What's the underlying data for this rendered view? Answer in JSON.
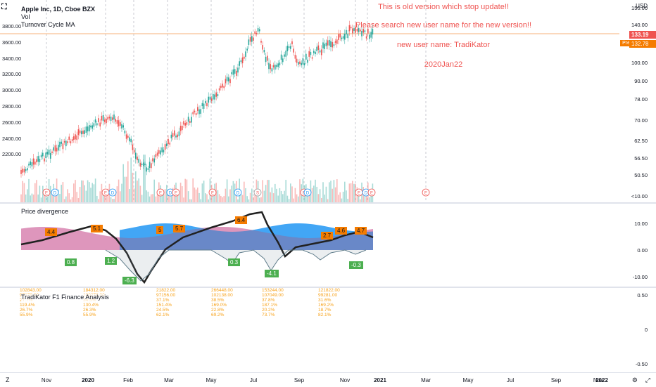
{
  "header": {
    "symbol_line": "Apple Inc, 1D, Cboe BZX",
    "indicator_vol": "Vol",
    "indicator_ma": "Turnover Cycle MA"
  },
  "notice": {
    "line1": "This is old version which stop update!!",
    "line2": "Please search new user name for the new version!!",
    "line3": "new user name: TradiKator",
    "line4": "2020Jan22"
  },
  "right_scale": {
    "currency": "USD",
    "ticks": [
      "150.00",
      "140.00",
      "120.00",
      "100.00",
      "90.00",
      "78.00",
      "70.00",
      "62.50",
      "56.50",
      "50.50",
      "<10.00"
    ],
    "price_badge": "133.19",
    "pre_label": "Pre",
    "pre_badge": "132.78"
  },
  "left_scale": {
    "ticks": [
      "3800.00",
      "3600.00",
      "3400.00",
      "3200.00",
      "3000.00",
      "2800.00",
      "2600.00",
      "2400.00",
      "2200.00"
    ]
  },
  "divergence": {
    "title": "Price divergence",
    "ticks": [
      "10.00",
      "0.00",
      "-10.00"
    ],
    "labels_up": [
      "4.4",
      "5.1",
      "5",
      "5.7",
      "6.4",
      "2.7",
      "4.6",
      "4.7"
    ],
    "labels_down": [
      "0.8",
      "1.2",
      "-6.3",
      "0.3",
      "-4.1",
      "-0.3"
    ]
  },
  "finance": {
    "title": "TradiKator F1 Finance Analysis",
    "ticks": [
      "0.50",
      "0",
      "-0.50"
    ],
    "columns": [
      [
        "102843.00",
        "97178.00",
        "27.7%",
        "119.4%",
        "26.7%",
        "55.9%"
      ],
      [
        "184312.00",
        "100278.00",
        "34.3%",
        "130.4%",
        "26.3%",
        "55.9%"
      ],
      [
        "21822.00",
        "97156.00",
        "37.1%",
        "151.4%",
        "24.5%",
        "62.1%"
      ],
      [
        "266448.00",
        "102138.00",
        "38.5%",
        "169.0%",
        "22.8%",
        "69.2%"
      ],
      [
        "153244.00",
        "107049.00",
        "37.8%",
        "187.1%",
        "20.2%",
        "73.7%"
      ],
      [
        "121822.00",
        "99281.00",
        "31.6%",
        "169.2%",
        "18.7%",
        "82.1%"
      ]
    ]
  },
  "xaxis": {
    "ticks": [
      "Nov",
      "2020",
      "Feb",
      "Mar",
      "May",
      "Jul",
      "Sep",
      "Nov",
      "2021",
      "Mar",
      "May",
      "Jul",
      "Sep",
      "Nov",
      "2022"
    ]
  },
  "colors": {
    "up": "#26a69a",
    "down": "#ef5350",
    "accent": "#f57c00",
    "blue": "#2196f3",
    "green_badge": "#4caf50"
  }
}
